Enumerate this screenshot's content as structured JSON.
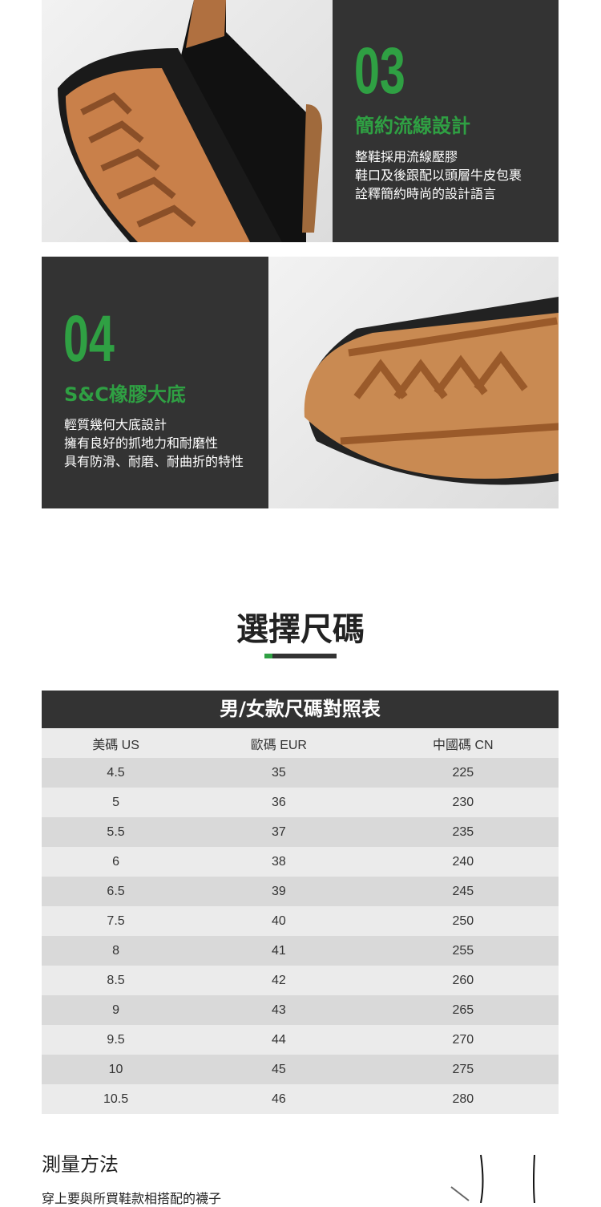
{
  "feature3": {
    "number": "03",
    "title": "簡約流線設計",
    "lines": [
      "整鞋採用流線壓膠",
      "鞋口及後跟配以頭層牛皮包裹",
      "詮釋簡約時尚的設計語言"
    ]
  },
  "feature4": {
    "number": "04",
    "title": "S&C橡膠大底",
    "lines": [
      "輕質幾何大底設計",
      "擁有良好的抓地力和耐磨性",
      "具有防滑、耐磨、耐曲折的特性"
    ]
  },
  "size_section": {
    "title": "選擇尺碼",
    "table_title": "男/女款尺碼對照表",
    "columns": [
      "美碼 US",
      "歐碼 EUR",
      "中國碼 CN"
    ],
    "rows": [
      [
        "4.5",
        "35",
        "225"
      ],
      [
        "5",
        "36",
        "230"
      ],
      [
        "5.5",
        "37",
        "235"
      ],
      [
        "6",
        "38",
        "240"
      ],
      [
        "6.5",
        "39",
        "245"
      ],
      [
        "7.5",
        "40",
        "250"
      ],
      [
        "8",
        "41",
        "255"
      ],
      [
        "8.5",
        "42",
        "260"
      ],
      [
        "9",
        "43",
        "265"
      ],
      [
        "9.5",
        "44",
        "270"
      ],
      [
        "10",
        "45",
        "275"
      ],
      [
        "10.5",
        "46",
        "280"
      ]
    ]
  },
  "measure": {
    "title": "測量方法",
    "text": "穿上要與所買鞋款相搭配的襪子"
  },
  "colors": {
    "accent": "#2fa043",
    "panel": "#333333"
  }
}
